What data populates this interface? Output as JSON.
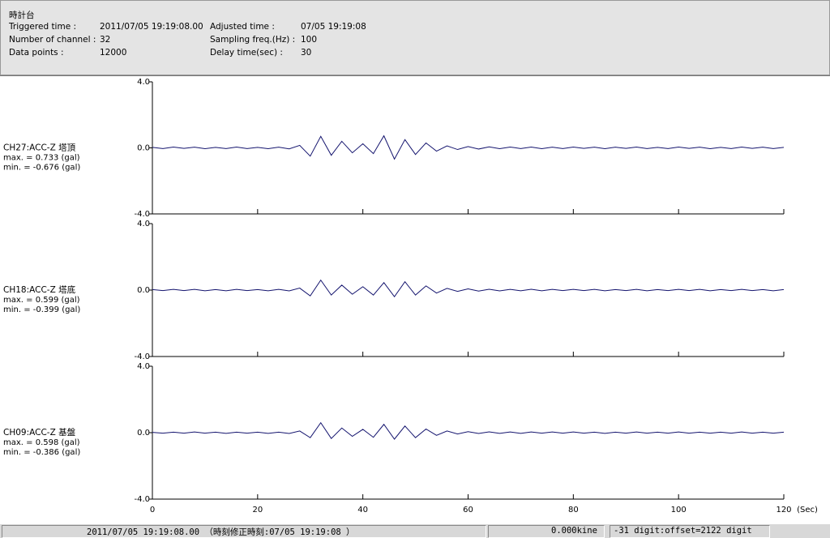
{
  "header": {
    "title": "時計台",
    "rows": [
      [
        "Triggered time :",
        "2011/07/05 19:19:08.00",
        "Adjusted time :",
        "07/05 19:19:08"
      ],
      [
        "Number of channel :",
        "32",
        "Sampling freq.(Hz) :",
        "100"
      ],
      [
        "Data points :",
        "12000",
        "Delay time(sec) :",
        "30"
      ]
    ]
  },
  "status": {
    "time": "2011/07/05 19:19:08.00 （時刻修正時刻:07/05 19:19:08 ）",
    "velocity": "0.000kine",
    "digit": "-31 digit:offset=2122 digit"
  },
  "chart_data": [
    {
      "type": "line",
      "label": "CH27:ACC-Z 塔頂",
      "max_text": "max. = 0.733 (gal)",
      "min_text": "min. = -0.676 (gal)",
      "xlim": [
        0,
        120
      ],
      "ylim": [
        -4,
        4
      ],
      "yticks": [
        {
          "value": 4,
          "label": "4.0"
        },
        {
          "value": 0,
          "label": "0.0"
        },
        {
          "value": -4,
          "label": "-4.0"
        }
      ],
      "xticks": [
        0,
        20,
        40,
        60,
        80,
        100,
        120
      ],
      "x": [
        0,
        2,
        4,
        6,
        8,
        10,
        12,
        14,
        16,
        18,
        20,
        22,
        24,
        26,
        28,
        30,
        32,
        34,
        36,
        38,
        40,
        42,
        44,
        46,
        48,
        50,
        52,
        54,
        56,
        58,
        60,
        62,
        64,
        66,
        68,
        70,
        72,
        74,
        76,
        78,
        80,
        82,
        84,
        86,
        88,
        90,
        92,
        94,
        96,
        98,
        100,
        102,
        104,
        106,
        108,
        110,
        112,
        114,
        116,
        118,
        120
      ],
      "series": [
        {
          "color": "#14146e",
          "values": [
            0.03,
            -0.04,
            0.05,
            -0.03,
            0.04,
            -0.05,
            0.03,
            -0.04,
            0.05,
            -0.04,
            0.03,
            -0.05,
            0.04,
            -0.06,
            0.15,
            -0.5,
            0.7,
            -0.45,
            0.4,
            -0.3,
            0.25,
            -0.35,
            0.73,
            -0.68,
            0.5,
            -0.4,
            0.3,
            -0.2,
            0.12,
            -0.1,
            0.08,
            -0.07,
            0.06,
            -0.05,
            0.05,
            -0.04,
            0.05,
            -0.05,
            0.04,
            -0.04,
            0.05,
            -0.03,
            0.04,
            -0.05,
            0.04,
            -0.03,
            0.05,
            -0.04,
            0.03,
            -0.04,
            0.05,
            -0.03,
            0.04,
            -0.05,
            0.03,
            -0.04,
            0.05,
            -0.03,
            0.04,
            -0.04,
            0.03
          ]
        }
      ]
    },
    {
      "type": "line",
      "label": "CH18:ACC-Z 塔底",
      "max_text": "max. = 0.599 (gal)",
      "min_text": "min. = -0.399 (gal)",
      "xlim": [
        0,
        120
      ],
      "ylim": [
        -4,
        4
      ],
      "yticks": [
        {
          "value": 4,
          "label": "4.0"
        },
        {
          "value": 0,
          "label": "0.0"
        },
        {
          "value": -4,
          "label": "-4.0"
        }
      ],
      "xticks": [
        0,
        20,
        40,
        60,
        80,
        100,
        120
      ],
      "x": [
        0,
        2,
        4,
        6,
        8,
        10,
        12,
        14,
        16,
        18,
        20,
        22,
        24,
        26,
        28,
        30,
        32,
        34,
        36,
        38,
        40,
        42,
        44,
        46,
        48,
        50,
        52,
        54,
        56,
        58,
        60,
        62,
        64,
        66,
        68,
        70,
        72,
        74,
        76,
        78,
        80,
        82,
        84,
        86,
        88,
        90,
        92,
        94,
        96,
        98,
        100,
        102,
        104,
        106,
        108,
        110,
        112,
        114,
        116,
        118,
        120
      ],
      "series": [
        {
          "color": "#14146e",
          "values": [
            0.03,
            -0.03,
            0.04,
            -0.03,
            0.04,
            -0.04,
            0.03,
            -0.04,
            0.04,
            -0.03,
            0.03,
            -0.04,
            0.04,
            -0.05,
            0.12,
            -0.35,
            0.6,
            -0.3,
            0.3,
            -0.25,
            0.2,
            -0.3,
            0.45,
            -0.4,
            0.5,
            -0.3,
            0.25,
            -0.18,
            0.1,
            -0.08,
            0.07,
            -0.06,
            0.05,
            -0.05,
            0.04,
            -0.04,
            0.05,
            -0.04,
            0.04,
            -0.03,
            0.04,
            -0.03,
            0.04,
            -0.04,
            0.03,
            -0.03,
            0.04,
            -0.04,
            0.03,
            -0.03,
            0.04,
            -0.03,
            0.04,
            -0.04,
            0.03,
            -0.03,
            0.04,
            -0.03,
            0.03,
            -0.04,
            0.03
          ]
        }
      ]
    },
    {
      "type": "line",
      "label": "CH09:ACC-Z 基盤",
      "max_text": "max. = 0.598 (gal)",
      "min_text": "min. = -0.386 (gal)",
      "xlim": [
        0,
        120
      ],
      "ylim": [
        -4,
        4
      ],
      "yticks": [
        {
          "value": 4,
          "label": "4.0"
        },
        {
          "value": 0,
          "label": "0.0"
        },
        {
          "value": -4,
          "label": "-4.0"
        }
      ],
      "xticks": [
        0,
        20,
        40,
        60,
        80,
        100,
        120
      ],
      "xlabel": "(Sec)",
      "x": [
        0,
        2,
        4,
        6,
        8,
        10,
        12,
        14,
        16,
        18,
        20,
        22,
        24,
        26,
        28,
        30,
        32,
        34,
        36,
        38,
        40,
        42,
        44,
        46,
        48,
        50,
        52,
        54,
        56,
        58,
        60,
        62,
        64,
        66,
        68,
        70,
        72,
        74,
        76,
        78,
        80,
        82,
        84,
        86,
        88,
        90,
        92,
        94,
        96,
        98,
        100,
        102,
        104,
        106,
        108,
        110,
        112,
        114,
        116,
        118,
        120
      ],
      "series": [
        {
          "color": "#14146e",
          "values": [
            0.02,
            -0.03,
            0.03,
            -0.03,
            0.04,
            -0.03,
            0.03,
            -0.04,
            0.03,
            -0.03,
            0.03,
            -0.04,
            0.03,
            -0.05,
            0.1,
            -0.3,
            0.6,
            -0.35,
            0.28,
            -0.22,
            0.2,
            -0.28,
            0.5,
            -0.39,
            0.4,
            -0.3,
            0.22,
            -0.16,
            0.1,
            -0.08,
            0.06,
            -0.05,
            0.05,
            -0.04,
            0.04,
            -0.04,
            0.04,
            -0.03,
            0.04,
            -0.03,
            0.04,
            -0.03,
            0.03,
            -0.04,
            0.03,
            -0.03,
            0.04,
            -0.03,
            0.03,
            -0.03,
            0.04,
            -0.03,
            0.03,
            -0.03,
            0.03,
            -0.03,
            0.04,
            -0.03,
            0.03,
            -0.03,
            0.03
          ]
        }
      ]
    }
  ]
}
